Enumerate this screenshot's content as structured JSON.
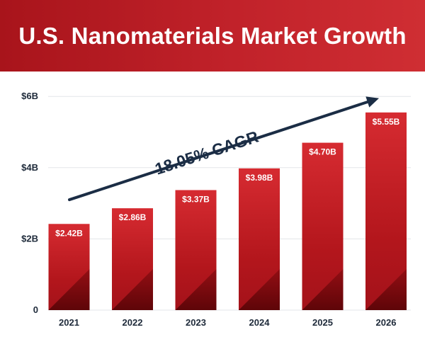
{
  "header": {
    "title": "U.S. Nanomaterials Market Growth"
  },
  "colors": {
    "header": "#b81c22",
    "bar_top": "#d62b31",
    "bar_mid": "#b3161c",
    "bar_bottom": "#6e0609",
    "arrow": "#1b2d45",
    "text": "#1e2a3a",
    "grid": "#e3e5e8"
  },
  "chart_data": {
    "type": "bar",
    "title": "U.S. Nanomaterials Market Growth",
    "xlabel": "",
    "ylabel": "",
    "categories": [
      "2021",
      "2022",
      "2023",
      "2024",
      "2025",
      "2026"
    ],
    "values": [
      2.42,
      2.86,
      3.37,
      3.98,
      4.7,
      5.55
    ],
    "value_labels": [
      "$2.42B",
      "$2.86B",
      "$3.37B",
      "$3.98B",
      "$4.70B",
      "$5.55B"
    ],
    "ylim": [
      0,
      6
    ],
    "yticks": [
      {
        "value": 0,
        "label": "0"
      },
      {
        "value": 2,
        "label": "$2B"
      },
      {
        "value": 4,
        "label": "$4B"
      },
      {
        "value": 6,
        "label": "$6B"
      }
    ],
    "grid": true,
    "legend": "none",
    "annotation": {
      "text": "18.05% CAGR",
      "type": "arrow",
      "from_value": 3.1,
      "to_value": 5.95
    }
  }
}
